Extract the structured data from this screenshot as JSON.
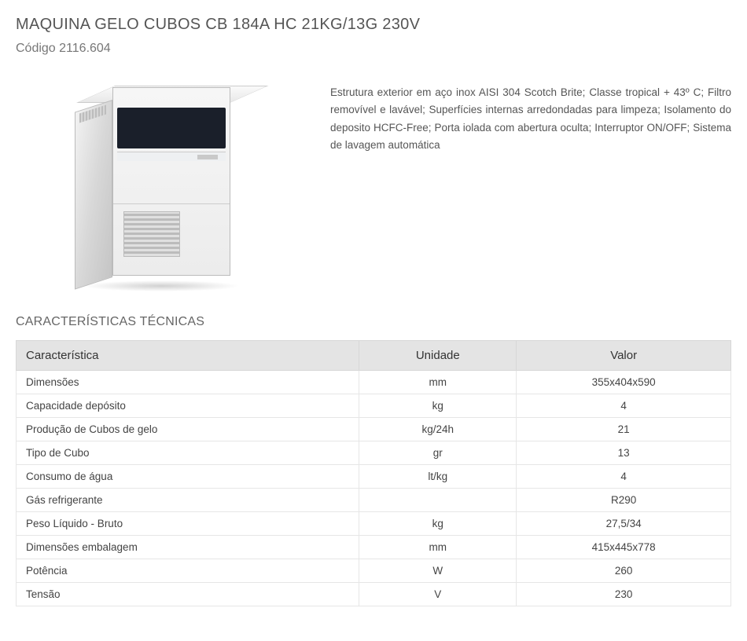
{
  "title": "MAQUINA GELO CUBOS CB 184A HC 21KG/13G 230V",
  "code_label": "Código",
  "code_value": "2116.604",
  "description": "Estrutura exterior em aço inox AISI 304 Scotch Brite; Classe tropical + 43º C; Filtro removível e lavável; Superfícies internas arredondadas para limpeza; Isolamento do deposito HCFC-Free; Porta iolada com abertura oculta; Interruptor ON/OFF; Sistema de lavagem automática",
  "section_title": "CARACTERÍSTICAS TÉCNICAS",
  "table": {
    "headers": {
      "c1": "Característica",
      "c2": "Unidade",
      "c3": "Valor"
    },
    "rows": [
      {
        "c1": "Dimensões",
        "c2": "mm",
        "c3": "355x404x590"
      },
      {
        "c1": "Capacidade depósito",
        "c2": "kg",
        "c3": "4"
      },
      {
        "c1": "Produção de Cubos de gelo",
        "c2": "kg/24h",
        "c3": "21"
      },
      {
        "c1": "Tipo de Cubo",
        "c2": "gr",
        "c3": "13"
      },
      {
        "c1": "Consumo de água",
        "c2": "lt/kg",
        "c3": "4"
      },
      {
        "c1": "Gás refrigerante",
        "c2": "",
        "c3": "R290"
      },
      {
        "c1": "Peso Líquido - Bruto",
        "c2": "kg",
        "c3": "27,5/34"
      },
      {
        "c1": "Dimensões embalagem",
        "c2": "mm",
        "c3": "415x445x778"
      },
      {
        "c1": "Potência",
        "c2": "W",
        "c3": "260"
      },
      {
        "c1": "Tensão",
        "c2": "V",
        "c3": "230"
      }
    ]
  },
  "colors": {
    "header_bg": "#e4e4e4",
    "border": "#e6e6e6",
    "text": "#444"
  }
}
